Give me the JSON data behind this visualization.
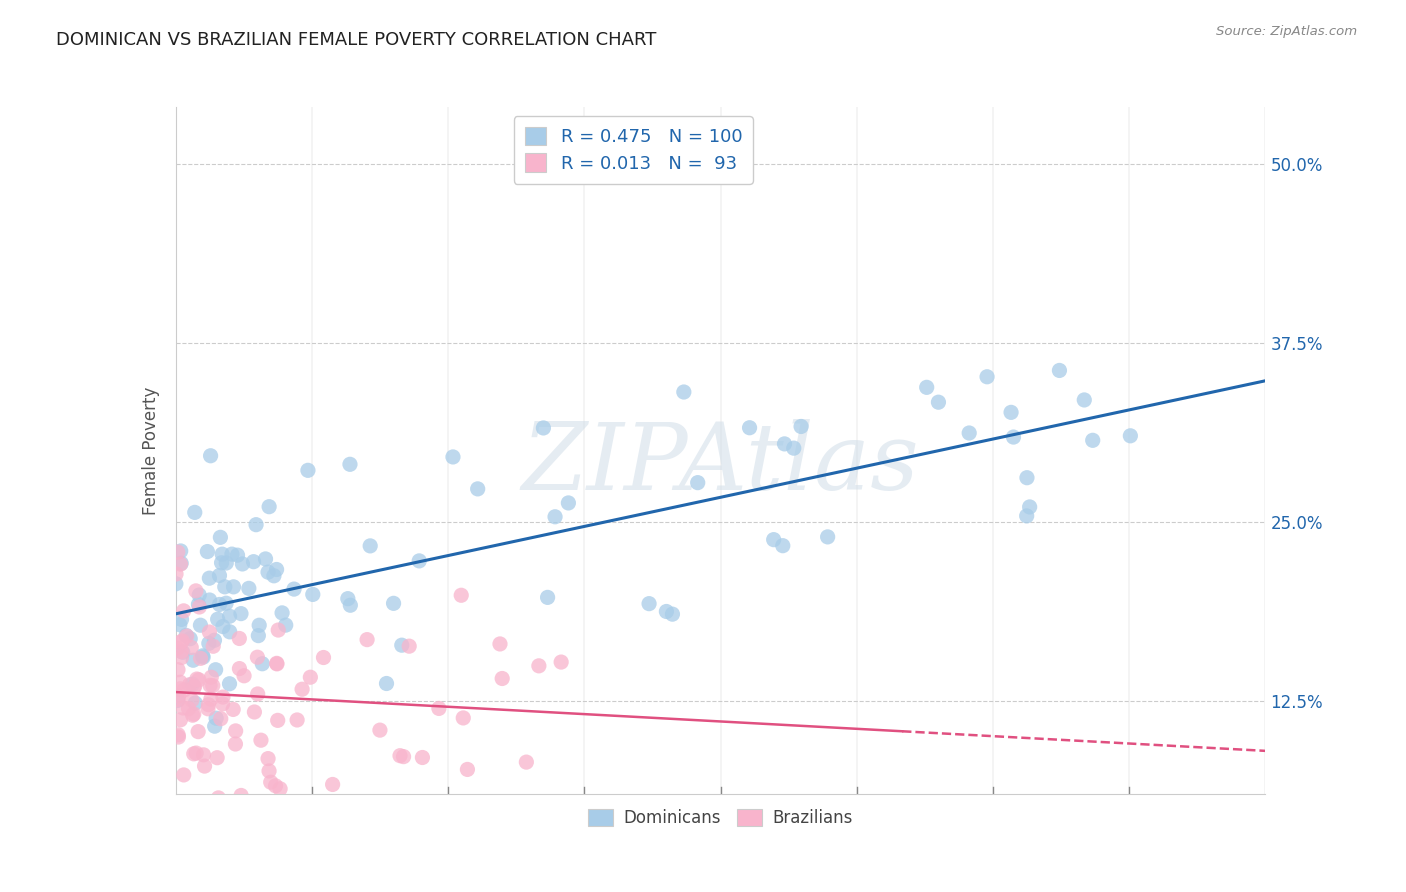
{
  "title": "DOMINICAN VS BRAZILIAN FEMALE POVERTY CORRELATION CHART",
  "source": "Source: ZipAtlas.com",
  "ylabel": "Female Poverty",
  "ytick_vals": [
    12.5,
    25.0,
    37.5,
    50.0
  ],
  "ytick_labels": [
    "12.5%",
    "25.0%",
    "37.5%",
    "50.0%"
  ],
  "xmin": 0.0,
  "xmax": 60.0,
  "ymin": 6.0,
  "ymax": 54.0,
  "blue_scatter_color": "#a8cce8",
  "pink_scatter_color": "#f8b4cc",
  "blue_line_color": "#2166ac",
  "pink_line_color": "#e05080",
  "legend_R_dom": "0.475",
  "legend_N_dom": "100",
  "legend_R_braz": "0.013",
  "legend_N_braz": "93",
  "legend_text_color": "#2166ac",
  "watermark_text": "ZIPAtlas",
  "background_color": "#ffffff",
  "grid_color": "#cccccc"
}
